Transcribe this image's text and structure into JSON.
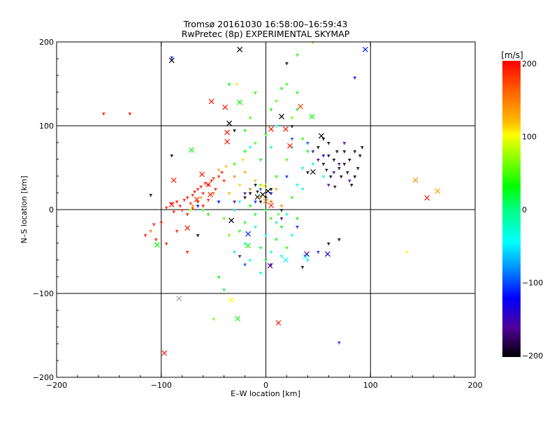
{
  "chart_data": {
    "type": "scatter",
    "title_line1": "Tromsø 20161030 16:58:00–16:59:43",
    "title_line2": "RwPretec (8p) EXPERIMENTAL SKYMAP",
    "xlabel": "E–W location [km]",
    "ylabel": "N–S location [km]",
    "xlim": [
      -200,
      200
    ],
    "ylim": [
      -200,
      200
    ],
    "grid": [
      -100,
      0,
      100
    ],
    "xticks": [
      "−200",
      "−100",
      "0",
      "100",
      "200"
    ],
    "yticks": [
      "−200",
      "−100",
      "0",
      "100",
      "200"
    ],
    "tick_values": [
      -200,
      -100,
      0,
      100,
      200
    ],
    "colorbar": {
      "label": "[m/s]",
      "range": [
        -200,
        200
      ],
      "tick_values": [
        200,
        100,
        0,
        -100,
        -200
      ],
      "tick_labels": [
        "200",
        "100",
        "0",
        "−100",
        "−200"
      ],
      "stops": [
        [
          200,
          "#ff0000"
        ],
        [
          160,
          "#ff6000"
        ],
        [
          115,
          "#ffc000"
        ],
        [
          100,
          "#ffff00"
        ],
        [
          30,
          "#00ff00"
        ],
        [
          0,
          "#00ff80"
        ],
        [
          -45,
          "#00ffff"
        ],
        [
          -80,
          "#0090ff"
        ],
        [
          -120,
          "#0000ff"
        ],
        [
          -160,
          "#50009a"
        ],
        [
          -200,
          "#000000"
        ]
      ]
    },
    "crosses": [
      [
        -90,
        178,
        -200
      ],
      [
        -25,
        191,
        -200
      ],
      [
        95,
        191,
        -110
      ],
      [
        -52,
        129,
        190
      ],
      [
        -39,
        122,
        190
      ],
      [
        -25,
        128,
        30
      ],
      [
        33,
        123,
        170
      ],
      [
        44,
        111,
        30
      ],
      [
        -35,
        103,
        -200
      ],
      [
        15,
        111,
        -200
      ],
      [
        5,
        96,
        190
      ],
      [
        19,
        96,
        190
      ],
      [
        -37,
        92,
        190
      ],
      [
        -37,
        81,
        190
      ],
      [
        -71,
        71,
        30
      ],
      [
        53,
        88,
        -200
      ],
      [
        23,
        76,
        190
      ],
      [
        -88,
        35,
        190
      ],
      [
        -61,
        42,
        190
      ],
      [
        -90,
        6,
        190
      ],
      [
        -53,
        18,
        190
      ],
      [
        -75,
        -22,
        190
      ],
      [
        -33,
        -13,
        -200
      ],
      [
        -104,
        -42,
        30
      ],
      [
        -17,
        -29,
        -110
      ],
      [
        -17,
        -43,
        30
      ],
      [
        4,
        -67,
        -160
      ],
      [
        19,
        -60,
        -45
      ],
      [
        38,
        -56,
        -45
      ],
      [
        59,
        -53,
        -130
      ],
      [
        39,
        -53,
        -160
      ],
      [
        143,
        35,
        140
      ],
      [
        154,
        14,
        190
      ],
      [
        164,
        22,
        130
      ],
      [
        -83,
        -106,
        null
      ],
      [
        -33,
        -108,
        100
      ],
      [
        -27,
        -130,
        30
      ],
      [
        12,
        -135,
        190
      ],
      [
        -97,
        -171,
        190
      ],
      [
        45,
        45,
        -200
      ],
      [
        -3,
        18,
        -200
      ],
      [
        2,
        22,
        -200
      ],
      [
        0,
        10,
        150
      ],
      [
        -8,
        15,
        -200
      ],
      [
        5,
        5,
        190
      ],
      [
        -2,
        28,
        100
      ],
      [
        -55,
        30,
        190
      ],
      [
        -66,
        12,
        190
      ]
    ],
    "points": [
      [
        -95,
        3,
        190
      ],
      [
        -90,
        8,
        190
      ],
      [
        -85,
        10,
        195
      ],
      [
        -82,
        5,
        190
      ],
      [
        -78,
        12,
        195
      ],
      [
        -75,
        15,
        190
      ],
      [
        -72,
        8,
        180
      ],
      [
        -70,
        18,
        190
      ],
      [
        -68,
        22,
        195
      ],
      [
        -65,
        25,
        190
      ],
      [
        -62,
        28,
        190
      ],
      [
        -60,
        20,
        185
      ],
      [
        -58,
        32,
        190
      ],
      [
        -55,
        30,
        195
      ],
      [
        -52,
        35,
        190
      ],
      [
        -50,
        38,
        185
      ],
      [
        -48,
        25,
        190
      ],
      [
        -45,
        40,
        180
      ],
      [
        -42,
        45,
        190
      ],
      [
        -40,
        35,
        185
      ],
      [
        -80,
        0,
        190
      ],
      [
        -75,
        -5,
        190
      ],
      [
        -70,
        2,
        185
      ],
      [
        -88,
        -2,
        190
      ],
      [
        -65,
        10,
        190
      ],
      [
        -60,
        5,
        195
      ],
      [
        -55,
        12,
        190
      ],
      [
        -100,
        -15,
        190
      ],
      [
        -107,
        -17,
        195
      ],
      [
        -95,
        -40,
        190
      ],
      [
        -105,
        -35,
        190
      ],
      [
        -75,
        -50,
        190
      ],
      [
        -155,
        115,
        195
      ],
      [
        -130,
        115,
        195
      ],
      [
        -115,
        -30,
        190
      ],
      [
        -85,
        -25,
        190
      ],
      [
        -70,
        5,
        140
      ],
      [
        -62,
        15,
        130
      ],
      [
        -50,
        20,
        150
      ],
      [
        -45,
        48,
        130
      ],
      [
        -38,
        52,
        120
      ],
      [
        -30,
        40,
        140
      ],
      [
        -25,
        30,
        110
      ],
      [
        -20,
        45,
        130
      ],
      [
        -15,
        25,
        150
      ],
      [
        -10,
        35,
        120
      ],
      [
        -5,
        15,
        140
      ],
      [
        5,
        10,
        150
      ],
      [
        10,
        25,
        130
      ],
      [
        15,
        5,
        140
      ],
      [
        -35,
        20,
        120
      ],
      [
        -22,
        60,
        110
      ],
      [
        -28,
        150,
        105
      ],
      [
        -110,
        -25,
        150
      ],
      [
        135,
        -50,
        100
      ],
      [
        -30,
        55,
        40
      ],
      [
        -20,
        70,
        30
      ],
      [
        -10,
        80,
        50
      ],
      [
        -5,
        60,
        30
      ],
      [
        0,
        90,
        40
      ],
      [
        5,
        120,
        30
      ],
      [
        10,
        130,
        50
      ],
      [
        15,
        145,
        30
      ],
      [
        20,
        150,
        40
      ],
      [
        25,
        110,
        60
      ],
      [
        30,
        140,
        30
      ],
      [
        -10,
        140,
        40
      ],
      [
        -15,
        110,
        50
      ],
      [
        -20,
        95,
        30
      ],
      [
        35,
        85,
        40
      ],
      [
        40,
        70,
        30
      ],
      [
        20,
        60,
        50
      ],
      [
        10,
        40,
        30
      ],
      [
        -5,
        30,
        60
      ],
      [
        0,
        0,
        30
      ],
      [
        -10,
        -5,
        20
      ],
      [
        5,
        -10,
        40
      ],
      [
        15,
        -20,
        30
      ],
      [
        -20,
        -15,
        20
      ],
      [
        -25,
        -25,
        40
      ],
      [
        10,
        -35,
        30
      ],
      [
        -5,
        -45,
        20
      ],
      [
        20,
        -45,
        40
      ],
      [
        30,
        -10,
        30
      ],
      [
        -40,
        -10,
        50
      ],
      [
        -55,
        -5,
        30
      ],
      [
        -35,
        -30,
        60
      ],
      [
        25,
        15,
        40
      ],
      [
        -45,
        -80,
        30
      ],
      [
        -40,
        -95,
        20
      ],
      [
        -50,
        -130,
        60
      ],
      [
        30,
        185,
        40
      ],
      [
        45,
        200,
        60
      ],
      [
        -60,
        0,
        40
      ],
      [
        -72,
        0,
        70
      ],
      [
        -15,
        5,
        30
      ],
      [
        0,
        -60,
        20
      ],
      [
        -35,
        150,
        30
      ],
      [
        30,
        120,
        20
      ],
      [
        12,
        -5,
        50
      ],
      [
        -10,
        -20,
        -30
      ],
      [
        0,
        -30,
        -40
      ],
      [
        10,
        -15,
        -20
      ],
      [
        -20,
        -40,
        -45
      ],
      [
        5,
        -50,
        -30
      ],
      [
        15,
        -55,
        -50
      ],
      [
        25,
        -30,
        -40
      ],
      [
        -30,
        -50,
        -30
      ],
      [
        -15,
        -60,
        -45
      ],
      [
        20,
        -5,
        -20
      ],
      [
        30,
        30,
        -40
      ],
      [
        35,
        50,
        -50
      ],
      [
        25,
        75,
        -30
      ],
      [
        -15,
        75,
        -40
      ],
      [
        5,
        75,
        -20
      ],
      [
        45,
        55,
        -50
      ],
      [
        55,
        40,
        -45
      ],
      [
        40,
        -60,
        -40
      ],
      [
        35,
        25,
        -30
      ],
      [
        -25,
        10,
        -50
      ],
      [
        10,
        100,
        -40
      ],
      [
        -5,
        -75,
        -30
      ],
      [
        -30,
        0,
        -60
      ],
      [
        -90,
        182,
        -110
      ],
      [
        85,
        158,
        -120
      ],
      [
        70,
        -158,
        -110
      ],
      [
        -20,
        -65,
        -100
      ],
      [
        20,
        40,
        -110
      ],
      [
        -45,
        10,
        -120
      ],
      [
        25,
        85,
        -100
      ],
      [
        -10,
        10,
        -110
      ],
      [
        5,
        20,
        -130
      ],
      [
        -5,
        25,
        -100
      ],
      [
        50,
        -50,
        -110
      ],
      [
        55,
        65,
        -120
      ],
      [
        40,
        80,
        -100
      ],
      [
        30,
        -20,
        -110
      ],
      [
        -65,
        5,
        -120
      ],
      [
        -30,
        10,
        -160
      ],
      [
        -20,
        20,
        -150
      ],
      [
        15,
        -10,
        -170
      ],
      [
        60,
        30,
        -160
      ],
      [
        45,
        70,
        -150
      ],
      [
        70,
        55,
        -170
      ],
      [
        75,
        80,
        -160
      ],
      [
        80,
        35,
        -150
      ],
      [
        65,
        45,
        -165
      ],
      [
        5,
        -65,
        -160
      ],
      [
        -25,
        -55,
        -155
      ],
      [
        50,
        60,
        -170
      ],
      [
        55,
        55,
        -200
      ],
      [
        60,
        65,
        -200
      ],
      [
        65,
        60,
        -200
      ],
      [
        70,
        50,
        -200
      ],
      [
        75,
        55,
        -200
      ],
      [
        80,
        60,
        -200
      ],
      [
        85,
        70,
        -200
      ],
      [
        90,
        65,
        -200
      ],
      [
        72,
        40,
        -200
      ],
      [
        78,
        45,
        -200
      ],
      [
        85,
        40,
        -200
      ],
      [
        62,
        40,
        -200
      ],
      [
        68,
        70,
        -200
      ],
      [
        58,
        48,
        -200
      ],
      [
        88,
        50,
        -200
      ],
      [
        92,
        75,
        -200
      ],
      [
        50,
        75,
        -200
      ],
      [
        75,
        70,
        -200
      ],
      [
        82,
        30,
        -200
      ],
      [
        66,
        28,
        -200
      ],
      [
        55,
        85,
        -200
      ],
      [
        60,
        80,
        -200
      ],
      [
        -20,
        15,
        -200
      ],
      [
        -15,
        20,
        -200
      ],
      [
        -8,
        22,
        -200
      ],
      [
        0,
        15,
        -200
      ],
      [
        5,
        25,
        -200
      ],
      [
        -5,
        10,
        -200
      ],
      [
        -10,
        30,
        -200
      ],
      [
        20,
        175,
        -200
      ],
      [
        -65,
        -30,
        -200
      ],
      [
        -30,
        95,
        -200
      ],
      [
        -110,
        18,
        -200
      ],
      [
        -90,
        65,
        -200
      ],
      [
        35,
        -68,
        -200
      ],
      [
        70,
        -35,
        -200
      ],
      [
        60,
        -40,
        -200
      ],
      [
        40,
        45,
        -200
      ],
      [
        25,
        100,
        -200
      ],
      [
        15,
        0,
        -200
      ]
    ]
  }
}
